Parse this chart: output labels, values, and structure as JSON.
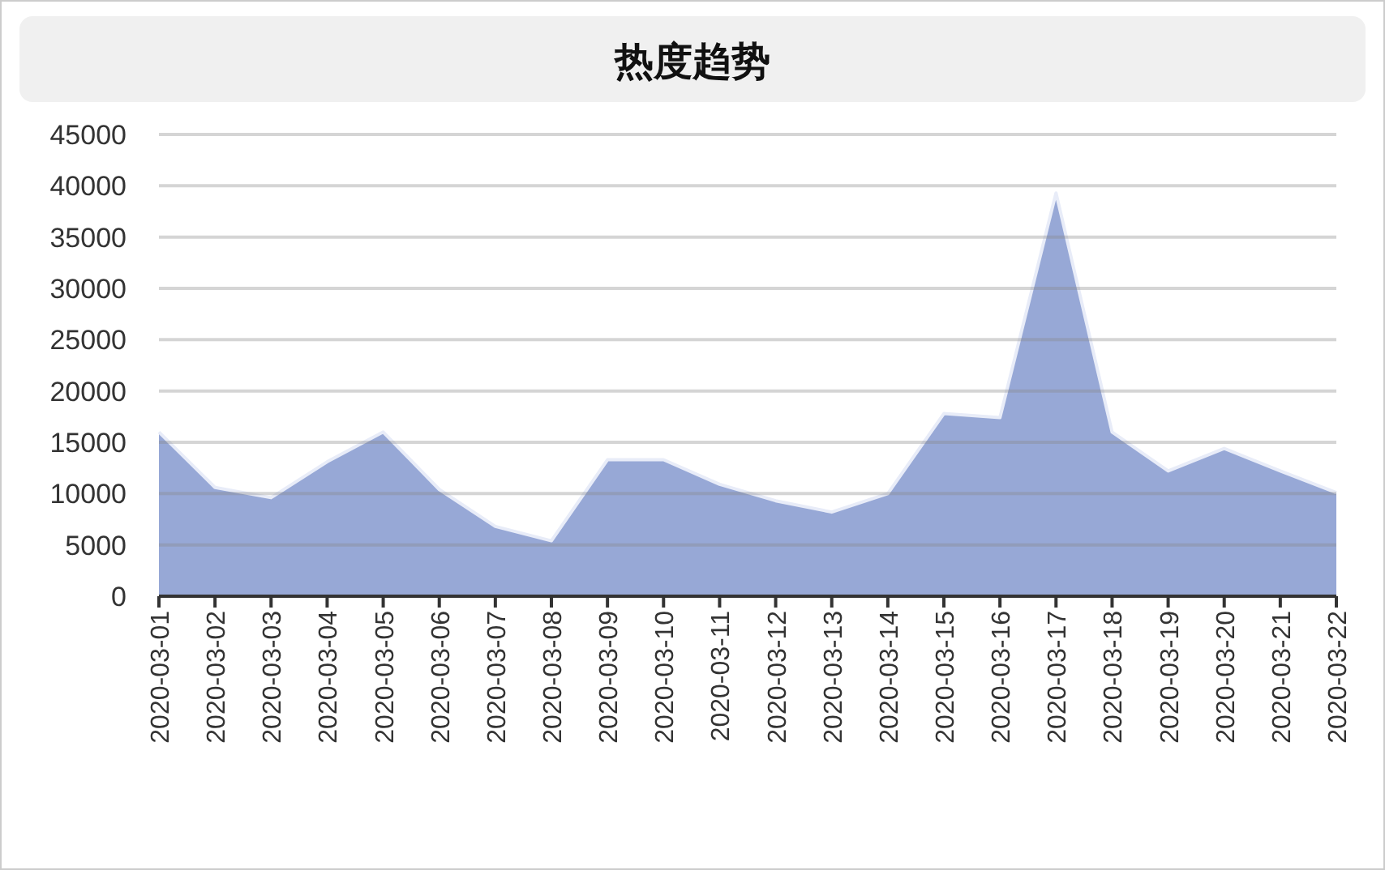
{
  "chart_data": {
    "type": "area",
    "title": "热度趋势",
    "categories": [
      "2020-03-01",
      "2020-03-02",
      "2020-03-03",
      "2020-03-04",
      "2020-03-05",
      "2020-03-06",
      "2020-03-07",
      "2020-03-08",
      "2020-03-09",
      "2020-03-10",
      "2020-03-11",
      "2020-03-12",
      "2020-03-13",
      "2020-03-14",
      "2020-03-15",
      "2020-03-16",
      "2020-03-17",
      "2020-03-18",
      "2020-03-19",
      "2020-03-20",
      "2020-03-21",
      "2020-03-22"
    ],
    "series": [
      {
        "color": "#97a8d6",
        "values": [
          16000,
          10600,
          9600,
          13100,
          16000,
          10400,
          6800,
          5400,
          13300,
          13300,
          10900,
          9300,
          8200,
          10000,
          17800,
          17400,
          39300,
          16000,
          12200,
          14400,
          12200,
          10100
        ]
      }
    ],
    "ylim": [
      0,
      45000
    ],
    "yticks": [
      0,
      5000,
      10000,
      15000,
      20000,
      25000,
      30000,
      35000,
      40000,
      45000
    ],
    "grid": "y"
  }
}
